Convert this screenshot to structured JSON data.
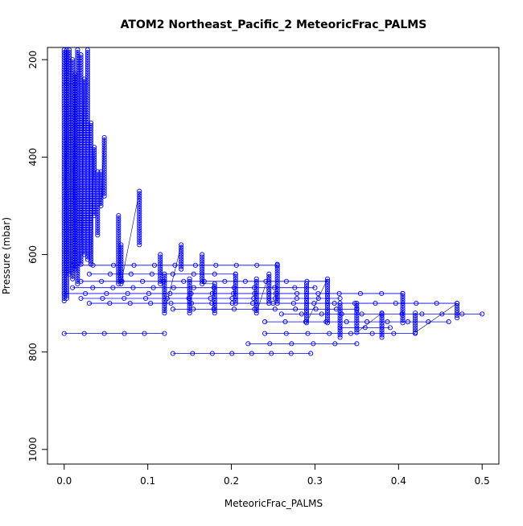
{
  "chart_data": {
    "type": "scatter",
    "title": "ATOM2 Northeast_Pacific_2 MeteoricFrac_PALMS",
    "xlabel": "MeteoricFrac_PALMS",
    "ylabel": "Pressure (mbar)",
    "xlim": [
      -0.02,
      0.52
    ],
    "ylim": [
      1030,
      175
    ],
    "y_reversed": true,
    "xticks": [
      "0.0",
      "0.1",
      "0.2",
      "0.3",
      "0.4",
      "0.5"
    ],
    "xtick_values": [
      0,
      0.1,
      0.2,
      0.3,
      0.4,
      0.5
    ],
    "yticks": [
      "200",
      "400",
      "600",
      "800",
      "1000"
    ],
    "ytick_values": [
      200,
      400,
      600,
      800,
      1000
    ],
    "grid": false,
    "legend": "none",
    "colors": {
      "markers": "#0000ff",
      "lines": "#0000ff",
      "connectors": "#00008b"
    },
    "series": [
      {
        "name": "",
        "vertical_profiles": [
          {
            "x": 0.0,
            "p_top": 180,
            "p_bottom": 695
          },
          {
            "x": 0.003,
            "p_top": 180,
            "p_bottom": 690
          },
          {
            "x": 0.006,
            "p_top": 180,
            "p_bottom": 640
          },
          {
            "x": 0.01,
            "p_top": 200,
            "p_bottom": 650
          },
          {
            "x": 0.013,
            "p_top": 230,
            "p_bottom": 630
          },
          {
            "x": 0.016,
            "p_top": 180,
            "p_bottom": 660
          },
          {
            "x": 0.02,
            "p_top": 190,
            "p_bottom": 620
          },
          {
            "x": 0.024,
            "p_top": 240,
            "p_bottom": 600
          },
          {
            "x": 0.028,
            "p_top": 180,
            "p_bottom": 610
          },
          {
            "x": 0.032,
            "p_top": 330,
            "p_bottom": 620
          },
          {
            "x": 0.036,
            "p_top": 380,
            "p_bottom": 520
          },
          {
            "x": 0.04,
            "p_top": 430,
            "p_bottom": 560
          },
          {
            "x": 0.044,
            "p_top": 430,
            "p_bottom": 500
          },
          {
            "x": 0.048,
            "p_top": 360,
            "p_bottom": 480
          },
          {
            "x": 0.065,
            "p_top": 520,
            "p_bottom": 660
          },
          {
            "x": 0.068,
            "p_top": 580,
            "p_bottom": 660
          },
          {
            "x": 0.09,
            "p_top": 470,
            "p_bottom": 580
          },
          {
            "x": 0.115,
            "p_top": 600,
            "p_bottom": 660
          },
          {
            "x": 0.12,
            "p_top": 640,
            "p_bottom": 720
          },
          {
            "x": 0.14,
            "p_top": 580,
            "p_bottom": 630
          },
          {
            "x": 0.15,
            "p_top": 650,
            "p_bottom": 720
          },
          {
            "x": 0.165,
            "p_top": 600,
            "p_bottom": 660
          },
          {
            "x": 0.18,
            "p_top": 660,
            "p_bottom": 720
          },
          {
            "x": 0.205,
            "p_top": 640,
            "p_bottom": 700
          },
          {
            "x": 0.23,
            "p_top": 650,
            "p_bottom": 720
          },
          {
            "x": 0.245,
            "p_top": 640,
            "p_bottom": 700
          },
          {
            "x": 0.255,
            "p_top": 620,
            "p_bottom": 700
          },
          {
            "x": 0.29,
            "p_top": 660,
            "p_bottom": 740
          },
          {
            "x": 0.315,
            "p_top": 650,
            "p_bottom": 740
          },
          {
            "x": 0.33,
            "p_top": 700,
            "p_bottom": 770
          },
          {
            "x": 0.35,
            "p_top": 700,
            "p_bottom": 760
          },
          {
            "x": 0.38,
            "p_top": 720,
            "p_bottom": 770
          },
          {
            "x": 0.405,
            "p_top": 680,
            "p_bottom": 740
          },
          {
            "x": 0.42,
            "p_top": 720,
            "p_bottom": 760
          },
          {
            "x": 0.47,
            "p_top": 700,
            "p_bottom": 730
          }
        ],
        "horizontal_transects": [
          {
            "p": 622,
            "x0": 0.01,
            "x1": 0.255
          },
          {
            "p": 640,
            "x0": 0.03,
            "x1": 0.205
          },
          {
            "p": 655,
            "x0": 0.02,
            "x1": 0.315
          },
          {
            "p": 668,
            "x0": 0.01,
            "x1": 0.3
          },
          {
            "p": 680,
            "x0": 0.0,
            "x1": 0.405
          },
          {
            "p": 690,
            "x0": 0.02,
            "x1": 0.33
          },
          {
            "p": 700,
            "x0": 0.03,
            "x1": 0.47
          },
          {
            "p": 712,
            "x0": 0.13,
            "x1": 0.35
          },
          {
            "p": 722,
            "x0": 0.26,
            "x1": 0.5
          },
          {
            "p": 738,
            "x0": 0.24,
            "x1": 0.46
          },
          {
            "p": 750,
            "x0": 0.33,
            "x1": 0.39
          },
          {
            "p": 762,
            "x0": 0.0,
            "x1": 0.12
          },
          {
            "p": 762,
            "x0": 0.24,
            "x1": 0.42
          },
          {
            "p": 783,
            "x0": 0.22,
            "x1": 0.35
          },
          {
            "p": 803,
            "x0": 0.13,
            "x1": 0.295
          }
        ]
      }
    ]
  }
}
